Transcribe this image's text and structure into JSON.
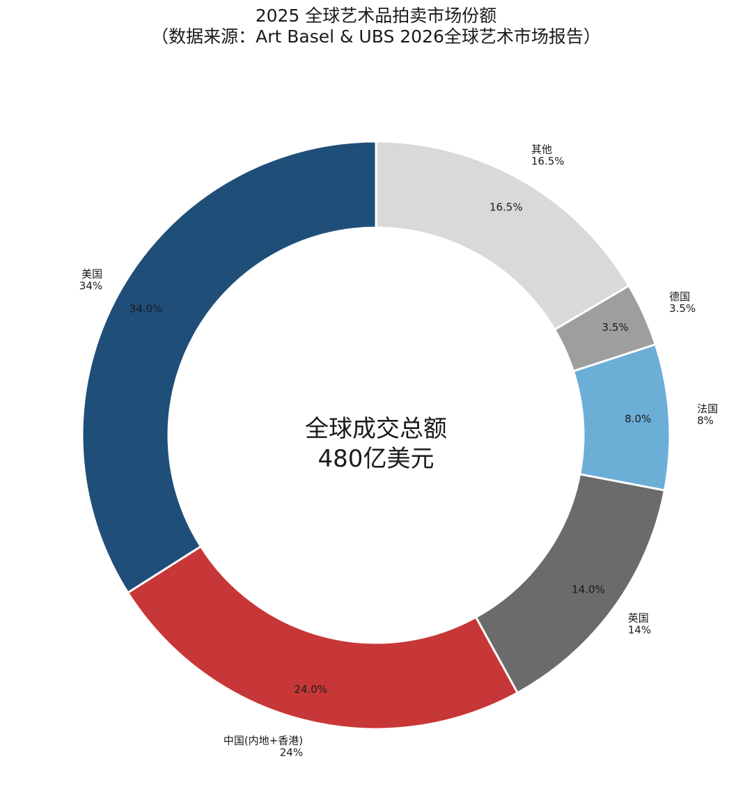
{
  "chart_data": {
    "type": "pie",
    "variant": "donut",
    "title": "2025 全球艺术品拍卖市场份额",
    "subtitle": "（数据来源：Art Basel & UBS 2026全球艺术市场报告）",
    "center_text": [
      "全球成交总额",
      "480亿美元"
    ],
    "start_angle_deg": 90,
    "direction": "counterclockwise",
    "slices": [
      {
        "label": "美国",
        "value": 34.0,
        "inner_label": "34.0%",
        "outer_pct": "34%",
        "color": "#1f4e79"
      },
      {
        "label": "中国(内地+香港)",
        "value": 24.0,
        "inner_label": "24.0%",
        "outer_pct": "24%",
        "color": "#c83737"
      },
      {
        "label": "英国",
        "value": 14.0,
        "inner_label": "14.0%",
        "outer_pct": "14%",
        "color": "#6b6b6b"
      },
      {
        "label": "法国",
        "value": 8.0,
        "inner_label": "8.0%",
        "outer_pct": "8%",
        "color": "#6baed6"
      },
      {
        "label": "德国",
        "value": 3.5,
        "inner_label": "3.5%",
        "outer_pct": "3.5%",
        "color": "#9e9e9e"
      },
      {
        "label": "其他",
        "value": 16.5,
        "inner_label": "16.5%",
        "outer_pct": "16.5%",
        "color": "#d9d9d9"
      }
    ],
    "legend": "none"
  }
}
